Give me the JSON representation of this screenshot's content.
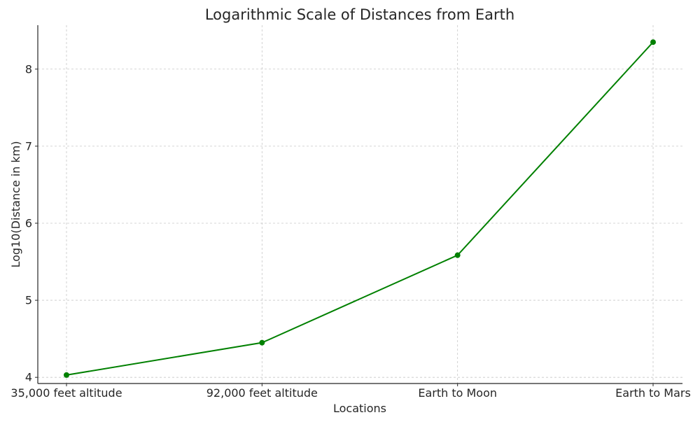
{
  "chart_data": {
    "type": "line",
    "title": "Logarithmic Scale of Distances from Earth",
    "xlabel": "Locations",
    "ylabel": "Log10(Distance in km)",
    "categories": [
      "35,000 feet altitude",
      "92,000 feet altitude",
      "Earth to Moon",
      "Earth to Mars"
    ],
    "series": [
      {
        "values": [
          4.03,
          4.45,
          5.585,
          8.35
        ],
        "color": "#008000",
        "marker": "circle"
      }
    ],
    "ylim": [
      3.92,
      8.57
    ],
    "yticks": [
      4,
      5,
      6,
      7,
      8
    ],
    "grid": true,
    "grid_style": "dashed",
    "legend": "none"
  }
}
